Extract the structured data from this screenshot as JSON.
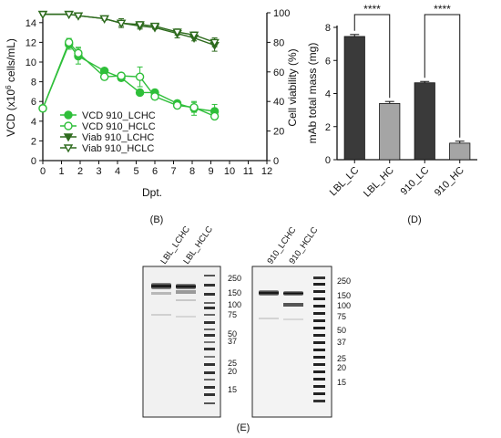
{
  "panel_b": {
    "caption": "(B)",
    "xlabel": "Dpt.",
    "ylabel_left": "VCD (x10",
    "ylabel_left_sup": "6",
    "ylabel_left_tail": " cells/mL)",
    "ylabel_right": "Cell viability (%)"
  },
  "panel_d": {
    "caption": "(D)",
    "ylabel": "mAb total mass (mg)",
    "sig1": "****",
    "sig2": "****"
  },
  "panel_e": {
    "caption": "(E)",
    "blot1_lanes": [
      "LBL_LCHC",
      "LBL_HCLC"
    ],
    "blot2_lanes": [
      "910_LCHC",
      "910_HCLC"
    ],
    "markers_blot1": [
      "250",
      "150",
      "100",
      "75",
      "50",
      "37",
      "25",
      "20",
      "15"
    ],
    "markers_blot2": [
      "250",
      "150",
      "100",
      "75",
      "50",
      "37",
      "25",
      "20",
      "15"
    ]
  },
  "colors": {
    "green": "#2fbf3a",
    "dark_green": "#2e6b1e",
    "bar_dark": "#3a3a3a",
    "bar_light": "#a5a5a5"
  },
  "chart_data": [
    {
      "type": "line",
      "xlabel": "Dpt.",
      "ylabel": "VCD (x10^6 cells/mL)",
      "y2label": "Cell viability (%)",
      "xlim": [
        0,
        12
      ],
      "ylim": [
        0,
        15
      ],
      "y2lim": [
        0,
        100
      ],
      "xticks": [
        0,
        1,
        2,
        3,
        4,
        5,
        6,
        7,
        8,
        9,
        10,
        11,
        12
      ],
      "yticks": [
        0,
        2,
        4,
        6,
        8,
        10,
        12,
        14
      ],
      "y2ticks": [
        0,
        20,
        40,
        60,
        80,
        100
      ],
      "legend_position": "bottom-left",
      "series": [
        {
          "name": "VCD 910_LCHC",
          "axis": "left",
          "marker": "filled-circle",
          "color": "#2fbf3a",
          "x": [
            0,
            1.4,
            1.9,
            3.3,
            4.2,
            5.2,
            6,
            7.2,
            8.1,
            9.2
          ],
          "y": [
            5.3,
            11.8,
            10.6,
            9.1,
            8.4,
            6.9,
            6.9,
            5.8,
            5.3,
            5.0
          ],
          "err": [
            0.2,
            0.5,
            0.8,
            0.3,
            0.3,
            0.3,
            0.3,
            0.3,
            0.7,
            0.7
          ]
        },
        {
          "name": "VCD 910_HCLC",
          "axis": "left",
          "marker": "open-circle",
          "color": "#2fbf3a",
          "x": [
            0,
            1.4,
            1.9,
            3.3,
            4.2,
            5.2,
            6,
            7.2,
            8.1,
            9.2
          ],
          "y": [
            5.3,
            12.0,
            10.9,
            8.5,
            8.6,
            8.5,
            6.5,
            5.6,
            5.4,
            4.5
          ],
          "err": [
            0.2,
            0.4,
            0.6,
            0.3,
            0.3,
            1.0,
            0.3,
            0.3,
            0.5,
            0.3
          ]
        },
        {
          "name": "Viab 910_LCHC",
          "axis": "right",
          "marker": "filled-triangle-down",
          "color": "#2e6b1e",
          "x": [
            0,
            1.4,
            1.9,
            3.3,
            4.2,
            5.2,
            6,
            7.2,
            8.1,
            9.2
          ],
          "y": [
            99,
            99,
            98,
            96,
            93,
            91,
            90,
            86,
            83,
            78
          ],
          "err": [
            0.5,
            0.5,
            1,
            1,
            3,
            2,
            1,
            3,
            2,
            4
          ]
        },
        {
          "name": "Viab 910_HCLC",
          "axis": "right",
          "marker": "open-triangle-down",
          "color": "#2e6b1e",
          "x": [
            0,
            1.4,
            1.9,
            3.3,
            4.2,
            5.2,
            6,
            7.2,
            8.1,
            9.2
          ],
          "y": [
            99,
            99,
            98,
            96,
            93,
            92,
            91,
            87,
            85,
            80
          ],
          "err": [
            0.5,
            0.5,
            1,
            1,
            2,
            2,
            1,
            2,
            2,
            3
          ]
        }
      ]
    },
    {
      "type": "bar",
      "ylabel": "mAb total mass (mg)",
      "categories": [
        "LBL_LC",
        "LBL_HC",
        "910_LC",
        "910_HC"
      ],
      "values": [
        7.45,
        3.4,
        4.65,
        1.0
      ],
      "errors": [
        0.12,
        0.12,
        0.08,
        0.12
      ],
      "bar_colors": [
        "#3a3a3a",
        "#a5a5a5",
        "#3a3a3a",
        "#a5a5a5"
      ],
      "ylim": [
        0,
        8
      ],
      "yticks": [
        0,
        2,
        4,
        6,
        8
      ],
      "annotations": [
        "****",
        "****"
      ]
    }
  ]
}
